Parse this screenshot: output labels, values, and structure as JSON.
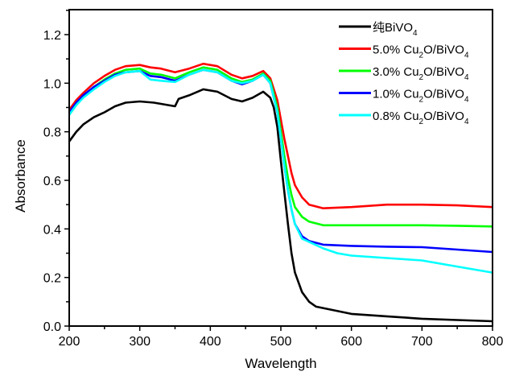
{
  "chart_data": {
    "type": "line",
    "title": "",
    "xlabel": "Wavelength",
    "ylabel": "Absorbance",
    "xlim": [
      200,
      800
    ],
    "ylim": [
      0.0,
      1.3
    ],
    "xticks": [
      200,
      300,
      400,
      500,
      600,
      700,
      800
    ],
    "xtick_labels": [
      "200",
      "300",
      "400",
      "500",
      "600",
      "700",
      "800"
    ],
    "yticks": [
      0.0,
      0.2,
      0.4,
      0.6,
      0.8,
      1.0,
      1.2
    ],
    "ytick_labels": [
      "0.0",
      "0.2",
      "0.4",
      "0.6",
      "0.8",
      "1.0",
      "1.2"
    ],
    "grid": false,
    "legend_position": "top-right",
    "series": [
      {
        "name": "纯BiVO4",
        "label_main": "纯BiVO",
        "label_sub": "4",
        "label_sub2": "",
        "label_rest": "",
        "color": "#000000",
        "x": [
          200,
          210,
          220,
          235,
          250,
          265,
          280,
          300,
          320,
          340,
          350,
          355,
          370,
          390,
          410,
          430,
          445,
          460,
          475,
          485,
          490,
          495,
          500,
          505,
          510,
          515,
          520,
          530,
          540,
          550,
          575,
          600,
          650,
          700,
          750,
          800
        ],
        "y": [
          0.76,
          0.8,
          0.83,
          0.86,
          0.88,
          0.905,
          0.92,
          0.925,
          0.92,
          0.91,
          0.905,
          0.935,
          0.95,
          0.975,
          0.965,
          0.935,
          0.925,
          0.94,
          0.965,
          0.94,
          0.9,
          0.82,
          0.68,
          0.55,
          0.42,
          0.3,
          0.22,
          0.14,
          0.1,
          0.08,
          0.065,
          0.05,
          0.04,
          0.03,
          0.025,
          0.02
        ]
      },
      {
        "name": "5.0% Cu2O/BiVO4",
        "label_main": "5.0% Cu",
        "label_sub": "2",
        "label_rest": "O/BiVO",
        "label_sub2": "4",
        "color": "#ff0000",
        "x": [
          200,
          210,
          220,
          235,
          250,
          265,
          280,
          300,
          315,
          330,
          350,
          370,
          390,
          410,
          430,
          445,
          460,
          475,
          485,
          495,
          500,
          505,
          510,
          515,
          520,
          530,
          540,
          560,
          600,
          650,
          700,
          750,
          800
        ],
        "y": [
          0.89,
          0.93,
          0.96,
          1.0,
          1.03,
          1.055,
          1.07,
          1.075,
          1.065,
          1.06,
          1.045,
          1.06,
          1.08,
          1.07,
          1.035,
          1.02,
          1.03,
          1.05,
          1.02,
          0.93,
          0.85,
          0.77,
          0.7,
          0.63,
          0.58,
          0.53,
          0.5,
          0.485,
          0.49,
          0.5,
          0.5,
          0.497,
          0.49
        ]
      },
      {
        "name": "3.0% Cu2O/BiVO4",
        "label_main": "3.0% Cu",
        "label_sub": "2",
        "label_rest": "O/BiVO",
        "label_sub2": "4",
        "color": "#00ff00",
        "x": [
          200,
          210,
          220,
          235,
          250,
          265,
          280,
          300,
          315,
          330,
          350,
          370,
          390,
          410,
          430,
          445,
          460,
          475,
          485,
          495,
          500,
          505,
          510,
          515,
          520,
          530,
          540,
          560,
          600,
          650,
          700,
          750,
          800
        ],
        "y": [
          0.87,
          0.91,
          0.945,
          0.985,
          1.015,
          1.04,
          1.055,
          1.06,
          1.04,
          1.035,
          1.02,
          1.045,
          1.065,
          1.055,
          1.02,
          1.005,
          1.015,
          1.04,
          1.01,
          0.9,
          0.8,
          0.7,
          0.61,
          0.54,
          0.49,
          0.45,
          0.43,
          0.415,
          0.415,
          0.415,
          0.415,
          0.413,
          0.41
        ]
      },
      {
        "name": "1.0% Cu2O/BiVO4",
        "label_main": "1.0% Cu",
        "label_sub": "2",
        "label_rest": "O/BiVO",
        "label_sub2": "4",
        "color": "#0000ff",
        "x": [
          200,
          210,
          220,
          235,
          250,
          265,
          280,
          300,
          315,
          330,
          350,
          370,
          390,
          410,
          430,
          445,
          460,
          475,
          485,
          495,
          500,
          505,
          510,
          515,
          520,
          530,
          540,
          560,
          600,
          650,
          700,
          750,
          800
        ],
        "y": [
          0.88,
          0.92,
          0.95,
          0.985,
          1.01,
          1.035,
          1.045,
          1.05,
          1.03,
          1.025,
          1.01,
          1.035,
          1.055,
          1.045,
          1.01,
          0.995,
          1.01,
          1.035,
          1.0,
          0.88,
          0.77,
          0.66,
          0.56,
          0.48,
          0.42,
          0.37,
          0.35,
          0.335,
          0.33,
          0.327,
          0.325,
          0.315,
          0.305
        ]
      },
      {
        "name": "0.8% Cu2O/BiVO4",
        "label_main": "0.8% Cu",
        "label_sub": "2",
        "label_rest": "O/BiVO",
        "label_sub2": "4",
        "color": "#00ffff",
        "x": [
          200,
          210,
          220,
          235,
          250,
          265,
          280,
          300,
          315,
          330,
          350,
          370,
          390,
          410,
          430,
          445,
          460,
          475,
          485,
          495,
          500,
          505,
          510,
          515,
          520,
          530,
          545,
          560,
          580,
          600,
          650,
          700,
          750,
          800
        ],
        "y": [
          0.87,
          0.91,
          0.94,
          0.975,
          1.005,
          1.03,
          1.045,
          1.05,
          1.015,
          1.01,
          1.005,
          1.035,
          1.055,
          1.045,
          1.01,
          1.0,
          1.01,
          1.035,
          1.0,
          0.88,
          0.77,
          0.66,
          0.56,
          0.48,
          0.42,
          0.36,
          0.34,
          0.32,
          0.3,
          0.29,
          0.28,
          0.27,
          0.245,
          0.22
        ]
      }
    ]
  }
}
